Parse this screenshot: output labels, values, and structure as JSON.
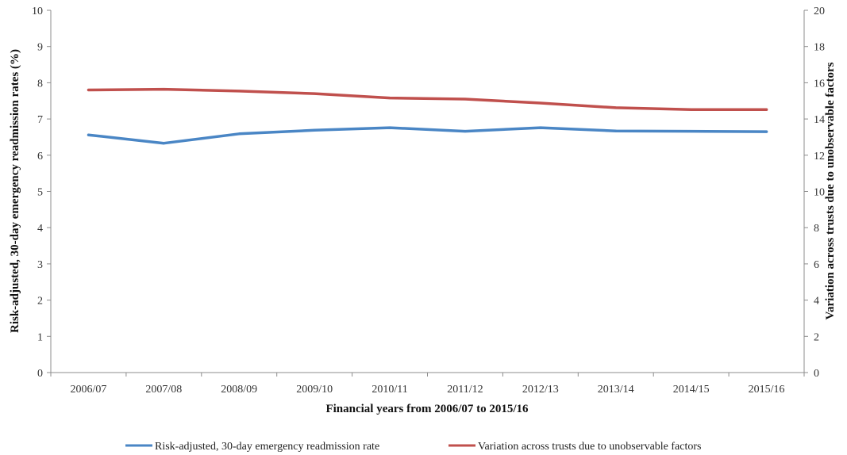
{
  "chart_data": {
    "type": "line",
    "categories": [
      "2006/07",
      "2007/08",
      "2008/09",
      "2009/10",
      "2010/11",
      "2011/12",
      "2012/13",
      "2013/14",
      "2014/15",
      "2015/16"
    ],
    "xlabel": "Financial years from 2006/07 to 2015/16",
    "ylabel": "Risk-adjusted, 30-day emergency readmission rates (%)",
    "y2label": "Variation across trusts due to unobservable factors",
    "ylim": [
      0,
      10
    ],
    "y2lim": [
      0,
      20
    ],
    "yticks": [
      "0",
      "1",
      "2",
      "3",
      "4",
      "5",
      "6",
      "7",
      "8",
      "9",
      "10"
    ],
    "y2ticks": [
      "0",
      "2",
      "4",
      "6",
      "8",
      "10",
      "12",
      "14",
      "16",
      "18",
      "20"
    ],
    "grid": false,
    "legend_position": "bottom",
    "series": [
      {
        "name": "Risk-adjusted, 30-day emergency readmission rate",
        "axis": "left",
        "color": "#4a86c5",
        "values": [
          6.56,
          6.33,
          6.59,
          6.69,
          6.76,
          6.66,
          6.76,
          6.67,
          6.66,
          6.65
        ]
      },
      {
        "name": "Variation across trusts due to unobservable factors",
        "axis": "right",
        "color": "#c0504d",
        "values": [
          15.6,
          15.64,
          15.54,
          15.4,
          15.16,
          15.1,
          14.88,
          14.62,
          14.52,
          14.52
        ]
      }
    ]
  }
}
